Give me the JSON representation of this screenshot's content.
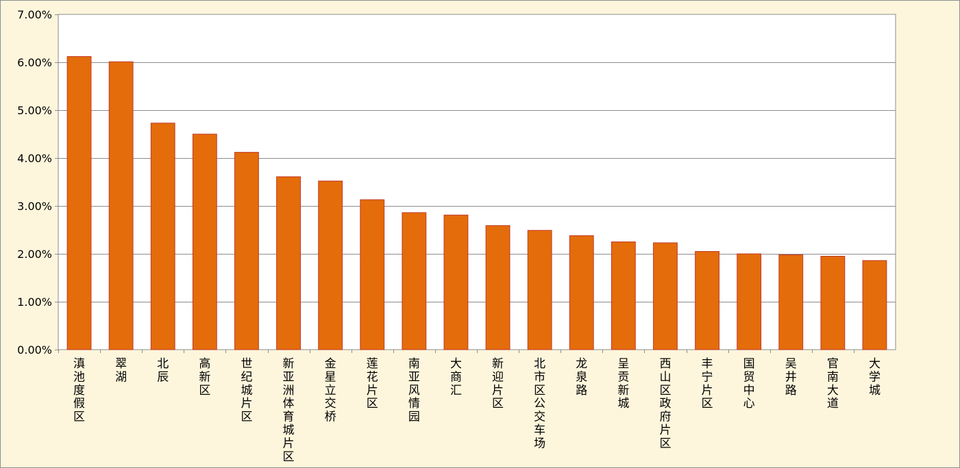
{
  "chart_data": {
    "type": "bar",
    "title": "",
    "xlabel": "",
    "ylabel": "",
    "ylim": [
      0,
      7
    ],
    "y_ticks": [
      0,
      1,
      2,
      3,
      4,
      5,
      6,
      7
    ],
    "y_tick_labels": [
      "0.00%",
      "1.00%",
      "2.00%",
      "3.00%",
      "4.00%",
      "5.00%",
      "6.00%",
      "7.00%"
    ],
    "grid": true,
    "legend": "none",
    "categories": [
      "滇池度假区",
      "翠湖",
      "北辰",
      "高新区",
      "世纪城片区",
      "新亚洲体育城片区",
      "金星立交桥",
      "莲花片区",
      "南亚风情园",
      "大商汇",
      "新迎片区",
      "北市区公交车场",
      "龙泉路",
      "呈贡新城",
      "西山区政府片区",
      "丰宁片区",
      "国贸中心",
      "吴井路",
      "官南大道",
      "大学城"
    ],
    "values": [
      6.12,
      6.01,
      4.73,
      4.5,
      4.12,
      3.61,
      3.52,
      3.13,
      2.86,
      2.81,
      2.59,
      2.49,
      2.38,
      2.25,
      2.23,
      2.05,
      2.0,
      1.98,
      1.95,
      1.86
    ],
    "colors": {
      "bar_fill": "#e46c0a",
      "bar_stroke": "#c0392b",
      "background": "#fdf6dc",
      "plot_background": "#ffffff",
      "gridline": "#8c8c8c"
    }
  }
}
